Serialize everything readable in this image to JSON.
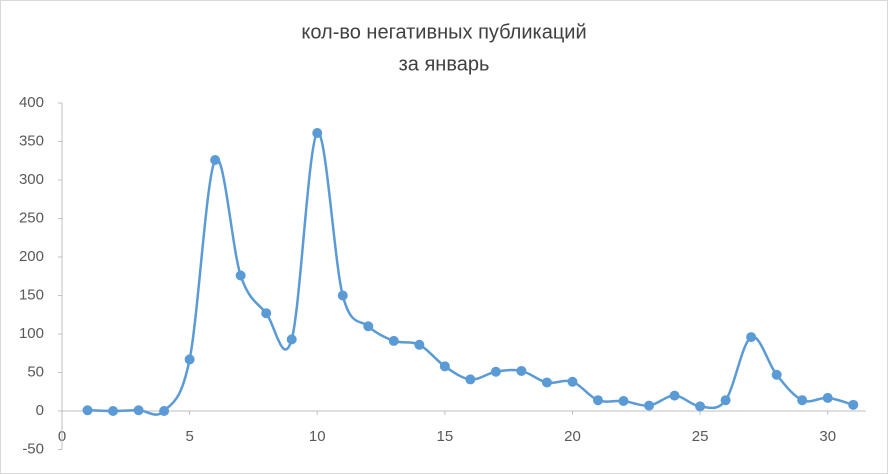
{
  "chart_data": {
    "type": "line",
    "title": [
      "кол-во негативных публикаций",
      "за январь"
    ],
    "x": [
      1,
      2,
      3,
      4,
      5,
      6,
      7,
      8,
      9,
      10,
      11,
      12,
      13,
      14,
      15,
      16,
      17,
      18,
      19,
      20,
      21,
      22,
      23,
      24,
      25,
      26,
      27,
      28,
      29,
      30,
      31
    ],
    "series": [
      {
        "name": "кол-во негативных публикаций",
        "color": "#5b9bd5",
        "values": [
          1,
          0,
          1,
          0,
          67,
          326,
          176,
          127,
          93,
          361,
          150,
          110,
          91,
          86,
          58,
          41,
          51,
          52,
          37,
          38,
          14,
          13,
          7,
          20,
          6,
          14,
          96,
          47,
          14,
          17,
          8
        ]
      }
    ],
    "xlim": [
      0,
      31.5
    ],
    "xticks": [
      0,
      5,
      10,
      15,
      20,
      25,
      30
    ],
    "ylim": [
      -50,
      400
    ],
    "yticks": [
      -50,
      0,
      50,
      100,
      150,
      200,
      250,
      300,
      350,
      400
    ],
    "smooth": true,
    "markers": true,
    "grid": false
  }
}
